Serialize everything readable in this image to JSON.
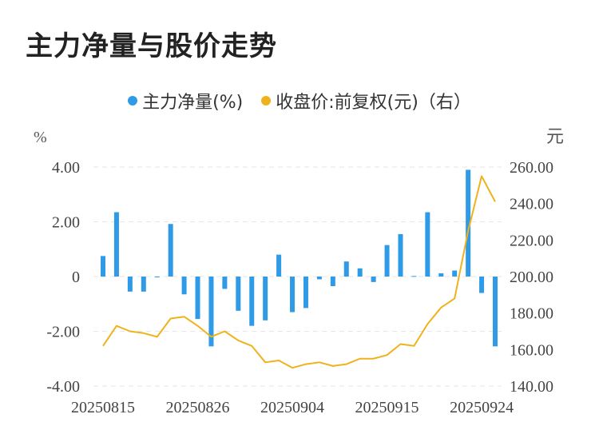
{
  "title": "主力净量与股价走势",
  "legend": {
    "left_series": "主力净量(%)",
    "right_series": "收盘价:前复权(元)（右）"
  },
  "colors": {
    "bar": "#2f9ae6",
    "line": "#f0b21c",
    "grid": "#e6e6e6",
    "text": "#555555"
  },
  "chart_data": {
    "type": "bar+line",
    "left_unit": "%",
    "right_unit": "元",
    "left_axis": {
      "ylim": [
        -4,
        4
      ],
      "ticks": [
        "4.00",
        "2.00",
        "0",
        "-2.00",
        "-4.00"
      ],
      "tick_values": [
        4,
        2,
        0,
        -2,
        -4
      ]
    },
    "right_axis": {
      "ylim": [
        140,
        260
      ],
      "ticks": [
        "260.00",
        "240.00",
        "220.00",
        "200.00",
        "180.00",
        "160.00",
        "140.00"
      ],
      "tick_values": [
        260,
        240,
        220,
        200,
        180,
        160,
        140
      ]
    },
    "x_tick_labels": [
      "20250815",
      "20250826",
      "20250904",
      "20250915",
      "20250924"
    ],
    "x_tick_indices": [
      0,
      7,
      14,
      21,
      28
    ],
    "series": [
      {
        "name": "主力净量(%)",
        "type": "bar",
        "axis": "left",
        "values": [
          0.75,
          2.35,
          -0.55,
          -0.55,
          -0.02,
          1.92,
          -0.65,
          -1.55,
          -2.55,
          -0.45,
          -1.25,
          -1.8,
          -1.6,
          0.8,
          -1.3,
          -1.15,
          -0.1,
          -0.35,
          0.55,
          0.3,
          -0.2,
          1.15,
          1.55,
          0.02,
          2.35,
          0.12,
          0.22,
          3.9,
          -0.6,
          -2.55
        ]
      },
      {
        "name": "收盘价:前复权(元)（右）",
        "type": "line",
        "axis": "right",
        "values": [
          162,
          173,
          170,
          169,
          167,
          177,
          178,
          173,
          167,
          170,
          165,
          162,
          153,
          154,
          150,
          152,
          153,
          151,
          152,
          155,
          155,
          157,
          163,
          162,
          174,
          183,
          188,
          225,
          255,
          241
        ]
      }
    ]
  }
}
